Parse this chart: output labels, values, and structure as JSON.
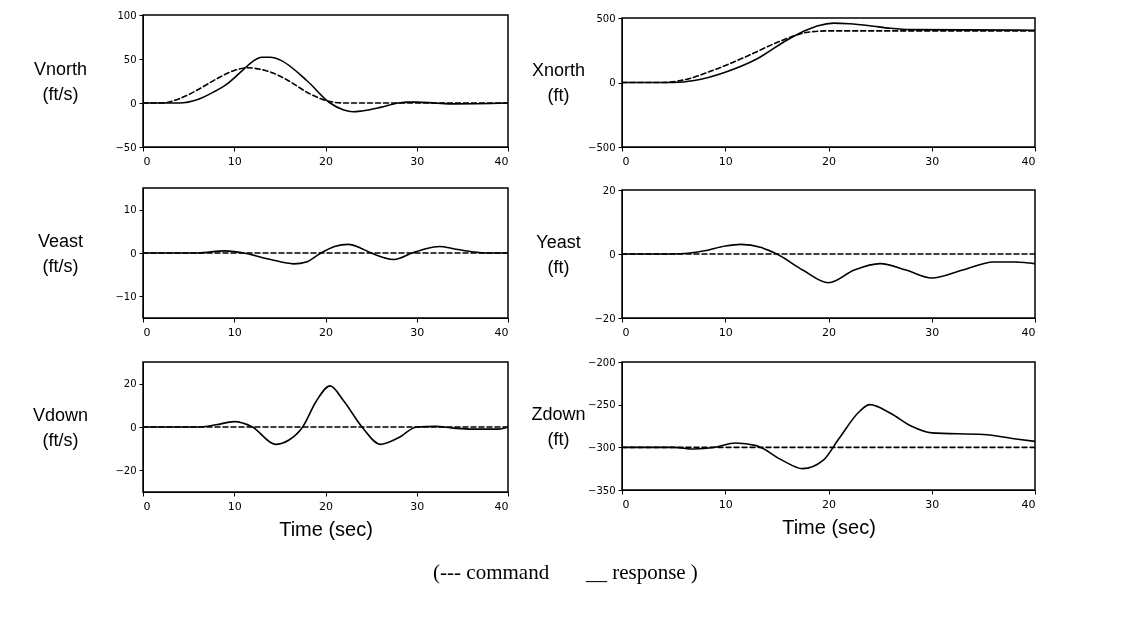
{
  "chart_data": [
    {
      "type": "line",
      "ylabel": "Vnorth (ft/s)",
      "xlim": [
        0,
        40
      ],
      "xticks": [
        0,
        10,
        20,
        30,
        40
      ],
      "ylim": [
        -50,
        100
      ],
      "yticks": [
        -50,
        0,
        50,
        100
      ],
      "grid": false,
      "series": [
        {
          "color": "#000000",
          "line_style": "dashed",
          "x": [
            0,
            2,
            4,
            6,
            8,
            10,
            11.5,
            13,
            14,
            16,
            18,
            20,
            22,
            40
          ],
          "values": [
            0,
            0,
            5,
            15,
            27,
            37,
            40,
            38,
            35,
            25,
            12,
            3,
            0,
            0
          ]
        },
        {
          "color": "#000000",
          "line_style": "solid",
          "x": [
            0,
            4,
            6,
            8,
            9,
            11,
            12,
            13,
            14,
            15,
            18,
            20.5,
            22,
            23,
            24,
            26,
            28,
            29,
            30,
            32,
            34,
            40
          ],
          "values": [
            0,
            0,
            4,
            14,
            20,
            38,
            47,
            52,
            52,
            49,
            25,
            0,
            -8,
            -10,
            -9,
            -5,
            0,
            1,
            1,
            0,
            -1,
            0
          ]
        }
      ]
    },
    {
      "type": "line",
      "ylabel": "Xnorth (ft)",
      "xlim": [
        0,
        40
      ],
      "xticks": [
        0,
        10,
        20,
        30,
        40
      ],
      "ylim": [
        -500,
        500
      ],
      "yticks": [
        -500,
        0,
        500
      ],
      "grid": false,
      "series": [
        {
          "color": "#000000",
          "line_style": "dashed",
          "x": [
            0,
            4,
            6,
            9,
            12,
            15,
            17,
            18,
            20,
            40
          ],
          "values": [
            0,
            0,
            20,
            100,
            200,
            310,
            370,
            390,
            400,
            400
          ]
        },
        {
          "color": "#000000",
          "line_style": "solid",
          "x": [
            0,
            5,
            7,
            10,
            13,
            16,
            18,
            19,
            20.5,
            22,
            24,
            26,
            28,
            40
          ],
          "values": [
            0,
            0,
            15,
            80,
            180,
            330,
            410,
            440,
            460,
            455,
            440,
            420,
            410,
            405
          ]
        }
      ]
    },
    {
      "type": "line",
      "ylabel": "Veast (ft/s)",
      "xlim": [
        0,
        40
      ],
      "xticks": [
        0,
        10,
        20,
        30,
        40
      ],
      "ylim": [
        -15,
        15
      ],
      "yticks": [
        -10,
        0,
        10
      ],
      "grid": false,
      "series": [
        {
          "color": "#000000",
          "line_style": "dashed",
          "x": [
            0,
            40
          ],
          "values": [
            0,
            0
          ]
        },
        {
          "color": "#000000",
          "line_style": "solid",
          "x": [
            0,
            6,
            9,
            11,
            14,
            16.5,
            18,
            19.5,
            21,
            22.5,
            24,
            25,
            27.5,
            29.5,
            31,
            32.5,
            34,
            36,
            38,
            40
          ],
          "values": [
            0,
            0,
            0.5,
            0,
            -1.5,
            -2.5,
            -2,
            0,
            1.5,
            2,
            1,
            0,
            -1.5,
            0,
            1,
            1.5,
            1,
            0.3,
            0,
            0
          ]
        }
      ]
    },
    {
      "type": "line",
      "ylabel": "Yeast (ft)",
      "xlim": [
        0,
        40
      ],
      "xticks": [
        0,
        10,
        20,
        30,
        40
      ],
      "ylim": [
        -20,
        20
      ],
      "yticks": [
        -20,
        0,
        20
      ],
      "grid": false,
      "series": [
        {
          "color": "#000000",
          "line_style": "dashed",
          "x": [
            0,
            40
          ],
          "values": [
            0,
            0
          ]
        },
        {
          "color": "#000000",
          "line_style": "solid",
          "x": [
            0,
            5,
            8,
            10,
            11.5,
            13.5,
            15,
            17.5,
            20,
            22.5,
            25,
            27.5,
            30,
            33,
            36,
            38,
            40
          ],
          "values": [
            0,
            0,
            1,
            2.5,
            3,
            2,
            0,
            -5,
            -9,
            -5,
            -3,
            -5,
            -7.5,
            -5,
            -2.5,
            -2.5,
            -3
          ]
        }
      ]
    },
    {
      "type": "line",
      "ylabel": "Vdown (ft/s)",
      "xlabel": "Time (sec)",
      "xlim": [
        0,
        40
      ],
      "xticks": [
        0,
        10,
        20,
        30,
        40
      ],
      "ylim": [
        -30,
        30
      ],
      "yticks": [
        -20,
        0,
        20
      ],
      "grid": false,
      "series": [
        {
          "color": "#000000",
          "line_style": "dashed",
          "x": [
            0,
            40
          ],
          "values": [
            0,
            0
          ]
        },
        {
          "color": "#000000",
          "line_style": "solid",
          "x": [
            0,
            6,
            8,
            10,
            12,
            14.5,
            16,
            17.5,
            19,
            20.5,
            22,
            24,
            26,
            28,
            30,
            32,
            34,
            36,
            39,
            40
          ],
          "values": [
            0,
            0,
            1,
            2.5,
            0,
            -8,
            -6,
            0,
            12,
            19,
            12,
            0,
            -8,
            -5,
            0,
            0.3,
            -0.5,
            -1,
            -1,
            0
          ]
        }
      ]
    },
    {
      "type": "line",
      "ylabel": "Zdown (ft)",
      "xlabel": "Time (sec)",
      "xlim": [
        0,
        40
      ],
      "xticks": [
        0,
        10,
        20,
        30,
        40
      ],
      "ylim": [
        -350,
        -200
      ],
      "yticks": [
        -350,
        -300,
        -250,
        -200
      ],
      "grid": false,
      "annotations": [
        "(--- command       __ response )"
      ],
      "series": [
        {
          "color": "#000000",
          "line_style": "dashed",
          "x": [
            0,
            40
          ],
          "values": [
            -300,
            -300
          ]
        },
        {
          "color": "#000000",
          "line_style": "solid",
          "x": [
            0,
            5,
            7,
            9,
            11,
            13,
            15.5,
            17.5,
            19.5,
            21,
            23,
            24,
            26,
            28,
            30,
            35,
            38,
            40
          ],
          "values": [
            -300,
            -300,
            -302,
            -300,
            -295,
            -298,
            -315,
            -325,
            -315,
            -290,
            -258,
            -250,
            -260,
            -275,
            -283,
            -285,
            -290,
            -293
          ]
        }
      ]
    }
  ]
}
